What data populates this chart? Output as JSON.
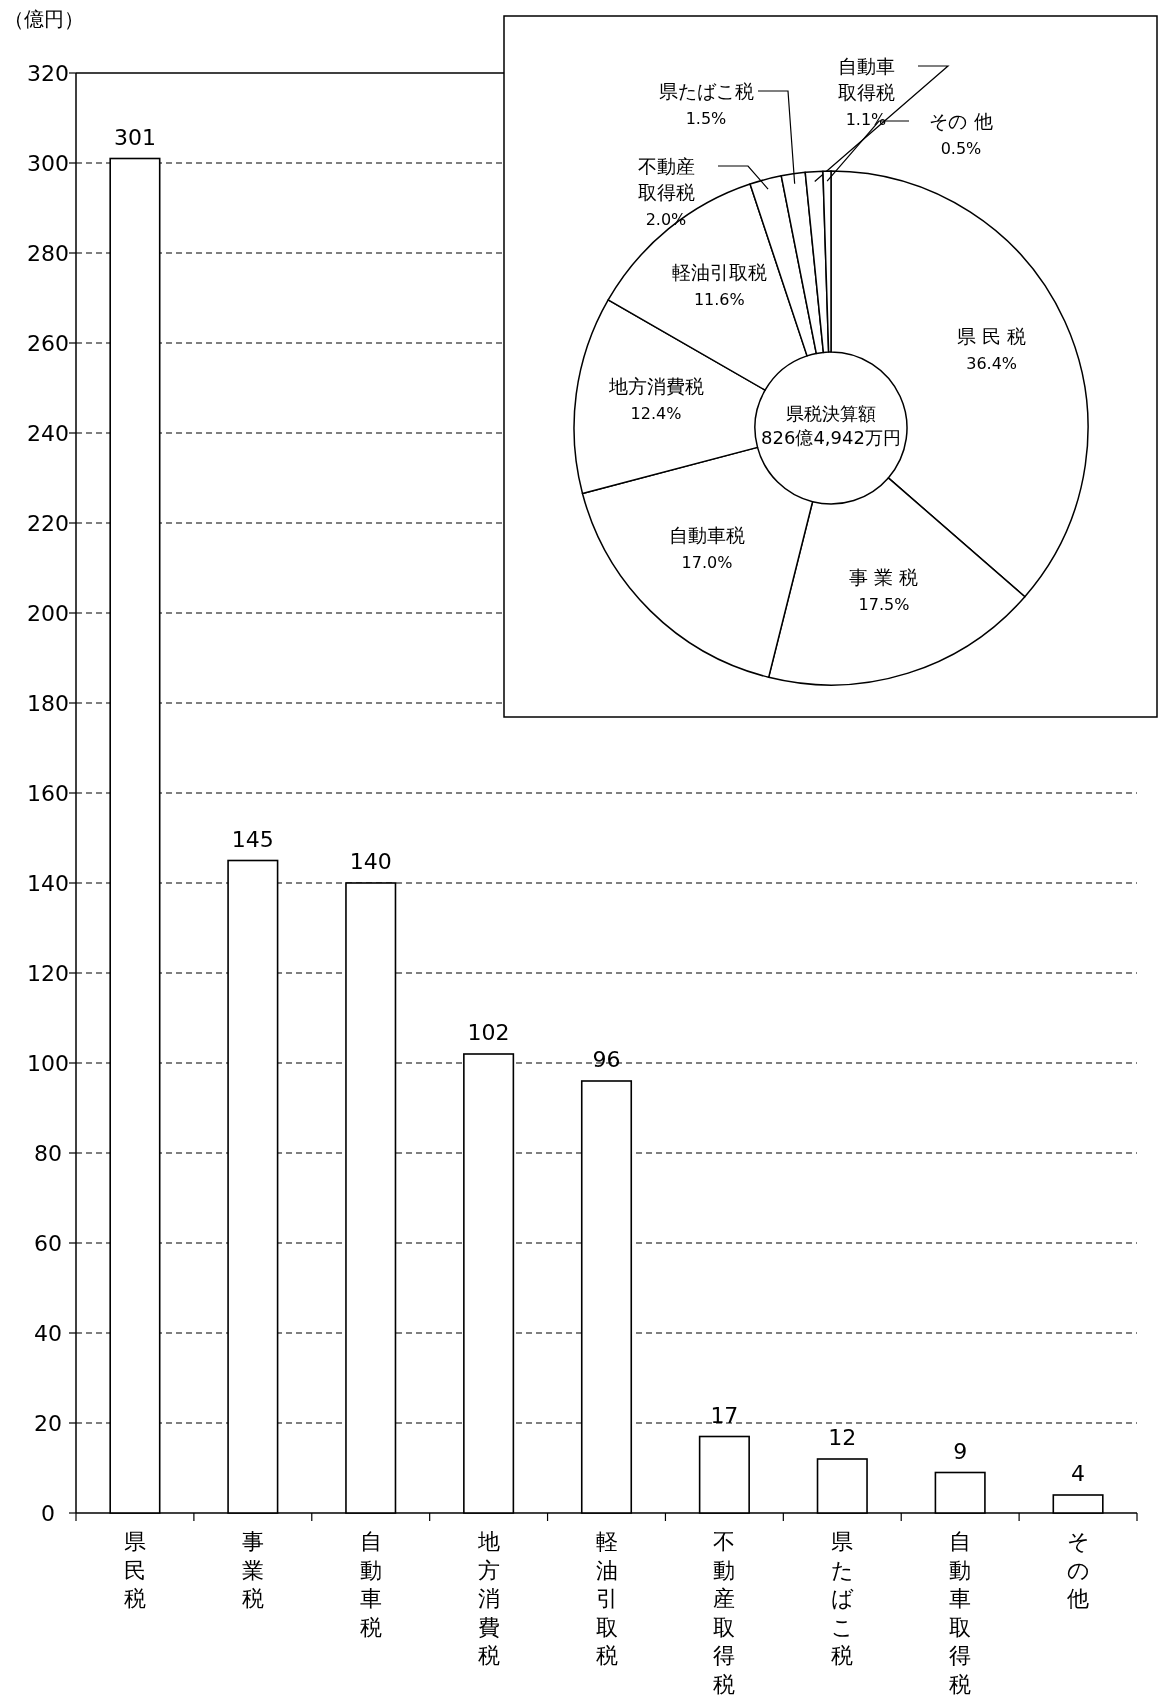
{
  "chart_data": [
    {
      "type": "bar",
      "ylabel": "（億円）",
      "categories": [
        "県民税",
        "事業税",
        "自動車税",
        "地方消費税",
        "軽油引取税",
        "不動産取得税",
        "県たばこ税",
        "自動車取得税",
        "その他"
      ],
      "values": [
        301,
        145,
        140,
        102,
        96,
        17,
        12,
        9,
        4
      ],
      "color": "#ffffff",
      "ylim": [
        0,
        320
      ],
      "yticks": [
        0,
        20,
        40,
        60,
        80,
        100,
        120,
        140,
        160,
        180,
        200,
        220,
        240,
        260,
        280,
        300,
        320
      ],
      "grid": "y",
      "data_labels": true
    },
    {
      "type": "donut",
      "categories": [
        "県 民 税",
        "事 業 税",
        "自動車税",
        "地方消費税",
        "軽油引取税",
        "不動産取得税",
        "県たばこ税",
        "自動車取得税",
        "その 他"
      ],
      "values": [
        36.4,
        17.5,
        17.0,
        12.4,
        11.6,
        2.0,
        1.5,
        1.1,
        0.5
      ],
      "value_labels": [
        "36.4%",
        "17.5%",
        "17.0%",
        "12.4%",
        "11.6%",
        "2.0%",
        "1.5%",
        "1.1%",
        "0.5%"
      ],
      "colors": [
        "#ffffff",
        "#ffffff",
        "#ffffff",
        "#ffffff",
        "#ffffff",
        "#ffffff",
        "#ffffff",
        "#ffffff",
        "#ffffff"
      ],
      "annotations": [
        "県税決算額\n826億4,942万円"
      ]
    }
  ]
}
